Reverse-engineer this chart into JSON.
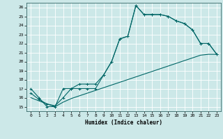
{
  "title": "",
  "xlabel": "Humidex (Indice chaleur)",
  "background_color": "#cce8e8",
  "grid_color": "#aacccc",
  "line_color": "#006666",
  "xlim": [
    -0.5,
    23.5
  ],
  "ylim": [
    14.5,
    26.5
  ],
  "xticks": [
    0,
    1,
    2,
    3,
    4,
    5,
    6,
    7,
    8,
    9,
    10,
    11,
    12,
    13,
    14,
    15,
    16,
    17,
    18,
    19,
    20,
    21,
    22,
    23
  ],
  "yticks": [
    15,
    16,
    17,
    18,
    19,
    20,
    21,
    22,
    23,
    24,
    25,
    26
  ],
  "line1_x": [
    0,
    1,
    2,
    3,
    4,
    5,
    6,
    7,
    8,
    9,
    10,
    11,
    12,
    13,
    14,
    15,
    16,
    17,
    18,
    19,
    20,
    21,
    22,
    23
  ],
  "line1_y": [
    17,
    16,
    15,
    15,
    17,
    17,
    17,
    17,
    17,
    18.5,
    20,
    22.5,
    22.8,
    26.2,
    25.2,
    25.2,
    25.2,
    25.0,
    24.5,
    24.2,
    23.5,
    22.0,
    22.0,
    20.8
  ],
  "line2_x": [
    0,
    1,
    2,
    3,
    4,
    5,
    6,
    7,
    8,
    9,
    10,
    11,
    12,
    13,
    14,
    15,
    16,
    17,
    18,
    19,
    20,
    21,
    22,
    23
  ],
  "line2_y": [
    16.0,
    15.65,
    15.3,
    15.0,
    15.5,
    15.9,
    16.2,
    16.5,
    16.8,
    17.1,
    17.4,
    17.7,
    18.0,
    18.3,
    18.6,
    18.9,
    19.2,
    19.5,
    19.8,
    20.1,
    20.4,
    20.7,
    20.8,
    20.8
  ],
  "line3_x": [
    0,
    1,
    2,
    3,
    4,
    5,
    6,
    7,
    8,
    9,
    10,
    11,
    12,
    13,
    14,
    15,
    16,
    17,
    18,
    19,
    20,
    21,
    22,
    23
  ],
  "line3_y": [
    16.5,
    15.8,
    15.3,
    15.1,
    16.0,
    17.0,
    17.5,
    17.5,
    17.5,
    18.5,
    20.0,
    22.5,
    22.8,
    26.2,
    25.2,
    25.2,
    25.2,
    25.0,
    24.5,
    24.2,
    23.5,
    22.0,
    22.0,
    20.8
  ]
}
